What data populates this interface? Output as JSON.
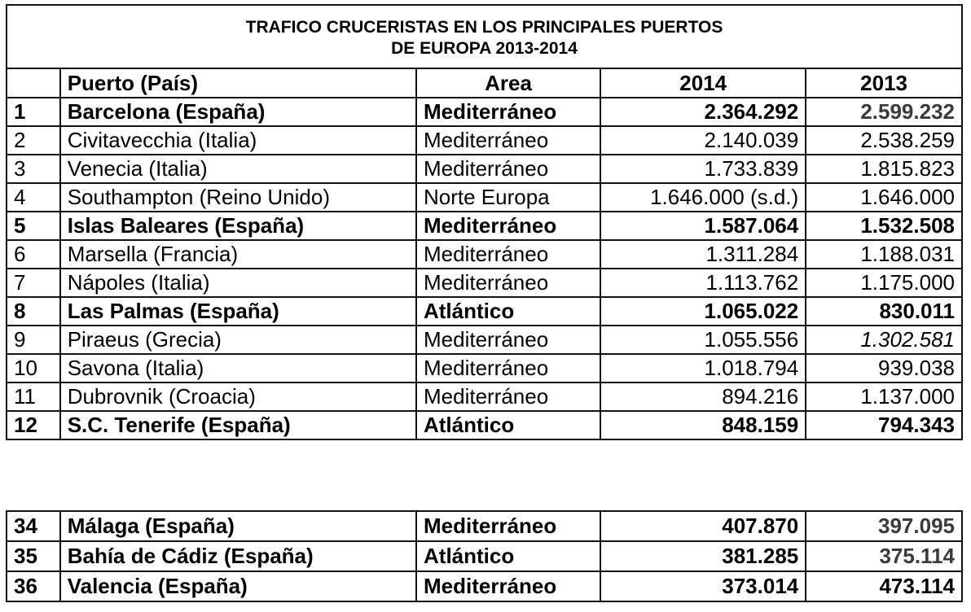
{
  "title": {
    "line1": "TRAFICO CRUCERISTAS EN LOS PRINCIPALES PUERTOS",
    "line2": "DE EUROPA 2013-2014"
  },
  "headers": {
    "rank": "",
    "port": "Puerto (País)",
    "area": "Area",
    "y2014": "2014",
    "y2013": "2013"
  },
  "rows": [
    {
      "rank": "1",
      "port": "Barcelona (España)",
      "area": "Mediterráneo",
      "y2014": "2.364.292",
      "y2013": "2.599.232",
      "bold": true
    },
    {
      "rank": "2",
      "port": "Civitavecchia (Italia)",
      "area": "Mediterráneo",
      "y2014": "2.140.039",
      "y2013": "2.538.259",
      "bold": false
    },
    {
      "rank": "3",
      "port": "Venecia (Italia)",
      "area": "Mediterráneo",
      "y2014": "1.733.839",
      "y2013": "1.815.823",
      "bold": false
    },
    {
      "rank": "4",
      "port": "Southampton (Reino Unido)",
      "area": "Norte Europa",
      "y2014": "1.646.000 (s.d.)",
      "y2013": "1.646.000",
      "bold": false
    },
    {
      "rank": "5",
      "port": "Islas Baleares (España)",
      "area": "Mediterráneo",
      "y2014": "1.587.064",
      "y2013": "1.532.508",
      "bold": true
    },
    {
      "rank": "6",
      "port": "Marsella (Francia)",
      "area": "Mediterráneo",
      "y2014": "1.311.284",
      "y2013": "1.188.031",
      "bold": false
    },
    {
      "rank": "7",
      "port": "Nápoles (Italia)",
      "area": "Mediterráneo",
      "y2014": "1.113.762",
      "y2013": "1.175.000",
      "bold": false
    },
    {
      "rank": "8",
      "port": "Las Palmas (España)",
      "area": "Atlántico",
      "y2014": "1.065.022",
      "y2013": "830.011",
      "bold": true
    },
    {
      "rank": "9",
      "port": "Piraeus (Grecia)",
      "area": "Mediterráneo",
      "y2014": "1.055.556",
      "y2013": "1.302.581",
      "bold": false,
      "y2013_italic": true
    },
    {
      "rank": "10",
      "port": "Savona (Italia)",
      "area": "Mediterráneo",
      "y2014": "1.018.794",
      "y2013": "939.038",
      "bold": false
    },
    {
      "rank": "11",
      "port": "Dubrovnik (Croacia)",
      "area": "Mediterráneo",
      "y2014": "894.216",
      "y2013": "1.137.000",
      "bold": false
    },
    {
      "rank": "12",
      "port": "S.C. Tenerife (España)",
      "area": "Atlántico",
      "y2014": "848.159",
      "y2013": "794.343",
      "bold": true
    }
  ],
  "rows_extra": [
    {
      "rank": "34",
      "port": "Málaga (España)",
      "area": "Mediterráneo",
      "y2014": "407.870",
      "y2013": "397.095",
      "bold": true
    },
    {
      "rank": "35",
      "port": "Bahía de Cádiz (España)",
      "area": "Atlántico",
      "y2014": "381.285",
      "y2013": "375.114",
      "bold": true
    },
    {
      "rank": "36",
      "port": "Valencia (España)",
      "area": "Mediterráneo",
      "y2014": "373.014",
      "y2013": "473.114",
      "bold": true
    }
  ]
}
